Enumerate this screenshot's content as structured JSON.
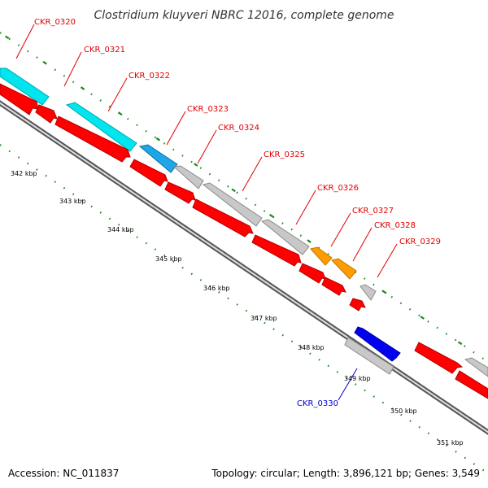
{
  "title": "Clostridium kluyveri NBRC 12016, complete genome",
  "footer": {
    "accession": "Accession: NC_011837",
    "summary": "Topology: circular; Length: 3,896,121 bp; Genes: 3,549"
  },
  "colors": {
    "gene_red": "#ff0000",
    "gene_red_edge": "#b30000",
    "cyan": "#00e5ee",
    "sky_blue": "#1ea7e8",
    "grey": "#c8c8c8",
    "orange": "#ff9d00",
    "blue": "#0000f0",
    "label_red": "#e00000",
    "label_blue": "#0000cc",
    "tick_green": "#1a8a1a",
    "backbone": "#888888"
  },
  "scale_ticks": [
    "342 kbp",
    "343 kbp",
    "344 kbp",
    "345 kbp",
    "346 kbp",
    "347 kbp",
    "348 kbp",
    "349 kbp",
    "350 kbp",
    "351 kbp"
  ],
  "genes": [
    {
      "id": "CKR_0320",
      "strand": "forward",
      "color": "red"
    },
    {
      "id": "CKR_0321",
      "strand": "forward",
      "color": "red"
    },
    {
      "id": "CKR_0322",
      "strand": "forward",
      "color": "red"
    },
    {
      "id": "CKR_0323",
      "strand": "forward",
      "color": "red"
    },
    {
      "id": "CKR_0324",
      "strand": "forward",
      "color": "red"
    },
    {
      "id": "CKR_0325",
      "strand": "forward",
      "color": "red"
    },
    {
      "id": "CKR_0326",
      "strand": "forward",
      "color": "red"
    },
    {
      "id": "CKR_0327",
      "strand": "forward",
      "color": "red"
    },
    {
      "id": "CKR_0328",
      "strand": "forward",
      "color": "red"
    },
    {
      "id": "CKR_0329",
      "strand": "forward",
      "color": "red"
    },
    {
      "id": "CKR_0330",
      "strand": "reverse",
      "color": "blue"
    }
  ]
}
